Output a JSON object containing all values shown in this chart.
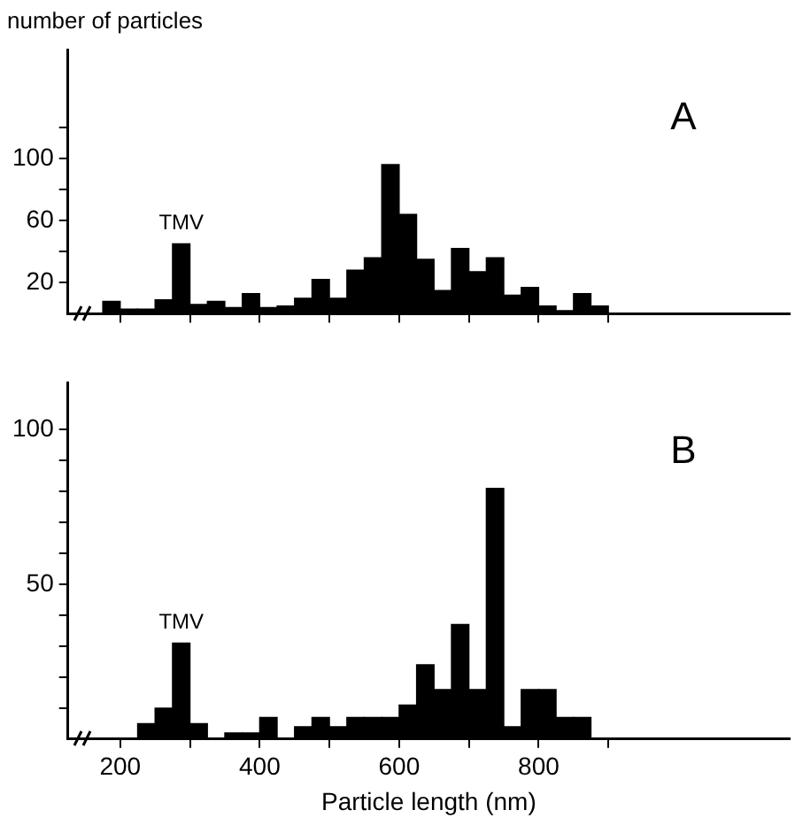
{
  "chart_data": [
    {
      "type": "histogram",
      "title": "A",
      "ylabel": "number of particles",
      "color": "#000000",
      "bins": [
        175,
        200,
        225,
        250,
        275,
        300,
        325,
        350,
        375,
        400,
        425,
        450,
        475,
        500,
        525,
        550,
        575,
        600,
        625,
        650,
        675,
        700,
        725,
        750,
        775,
        800,
        825,
        850,
        875,
        900
      ],
      "values": [
        8,
        3,
        3,
        9,
        45,
        6,
        8,
        4,
        13,
        4,
        5,
        10,
        22,
        10,
        28,
        36,
        96,
        64,
        35,
        15,
        42,
        27,
        36,
        12,
        17,
        5,
        2,
        13,
        5
      ],
      "annotations": [
        {
          "text": "TMV",
          "x": 287.5,
          "y": 45
        }
      ],
      "xlim": [
        125,
        1160
      ],
      "xticks": [
        {
          "value": 200,
          "label": null
        },
        {
          "value": 300,
          "label": null
        },
        {
          "value": 400,
          "label": null
        },
        {
          "value": 500,
          "label": null
        },
        {
          "value": 600,
          "label": null
        },
        {
          "value": 700,
          "label": null
        },
        {
          "value": 800,
          "label": null
        },
        {
          "value": 900,
          "label": null
        }
      ],
      "ylim": [
        0,
        170
      ],
      "yticks": [
        20,
        {
          "value": 40,
          "label": null
        },
        60,
        {
          "value": 80,
          "label": null
        },
        100,
        {
          "value": 120,
          "label": null
        }
      ],
      "tick_labels": "y",
      "grid": false,
      "legend": false
    },
    {
      "type": "histogram",
      "title": "B",
      "xlabel": "Particle length (nm)",
      "color": "#000000",
      "bins": [
        175,
        200,
        225,
        250,
        275,
        300,
        325,
        350,
        375,
        400,
        425,
        450,
        475,
        500,
        525,
        550,
        575,
        600,
        625,
        650,
        675,
        700,
        725,
        750,
        775,
        800,
        825,
        850,
        875,
        900
      ],
      "values": [
        0,
        0,
        5,
        10,
        31,
        5,
        0,
        2,
        2,
        7,
        0,
        4,
        7,
        4,
        7,
        7,
        7,
        11,
        24,
        16,
        37,
        16,
        81,
        4,
        16,
        16,
        7,
        7,
        0
      ],
      "annotations": [
        {
          "text": "TMV",
          "x": 287.5,
          "y": 31
        }
      ],
      "xlim": [
        125,
        1160
      ],
      "xticks": [
        200,
        {
          "value": 300,
          "label": null
        },
        400,
        {
          "value": 500,
          "label": null
        },
        600,
        {
          "value": 700,
          "label": null
        },
        800,
        {
          "value": 900,
          "label": null
        }
      ],
      "ylim": [
        0,
        115
      ],
      "yticks": [
        {
          "value": 10,
          "label": null
        },
        {
          "value": 20,
          "label": null
        },
        {
          "value": 30,
          "label": null
        },
        {
          "value": 40,
          "label": null
        },
        50,
        {
          "value": 60,
          "label": null
        },
        {
          "value": 70,
          "label": null
        },
        {
          "value": 80,
          "label": null
        },
        {
          "value": 90,
          "label": null
        },
        100
      ],
      "grid": false,
      "legend": false
    }
  ]
}
